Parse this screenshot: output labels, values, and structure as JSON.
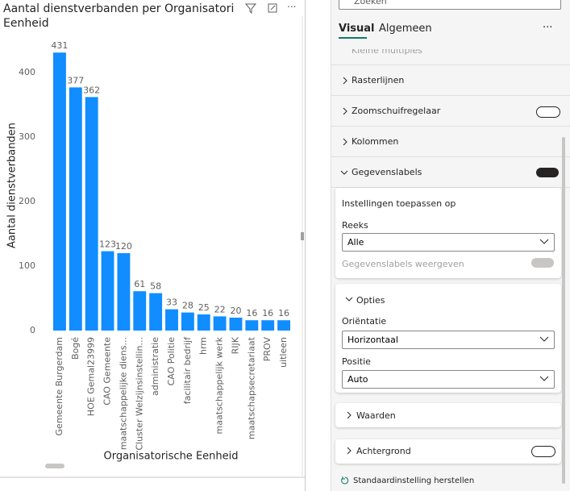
{
  "chart_data": {
    "type": "bar",
    "title": [
      "Aantal dienstverbanden per Organisatori",
      "Eenheid"
    ],
    "ylabel": "Aantal dienstverbanden",
    "xlabel": "Organisatorische Eenheid",
    "categories": [
      "Gemeente Burgerdam",
      "Bogé",
      "HOE Gemal23999",
      "CAO Gemeente",
      "maatschappelijke diens...",
      "Cluster Welzijnsinstellin...",
      "administratie",
      "CAO Politie",
      "facilitair bedrijf",
      "hrm",
      "maatschappelijk werk",
      "RIJK",
      "maatschapsecretariaat",
      "PROV",
      "uitleen"
    ],
    "values": [
      431,
      377,
      362,
      123,
      120,
      61,
      58,
      33,
      28,
      25,
      22,
      20,
      16,
      16,
      16
    ],
    "color": "#118dff",
    "ylim": [
      0,
      440
    ],
    "yticks": [
      0,
      100,
      200,
      300,
      400
    ],
    "grid": false
  },
  "pane": {
    "search": "Zoeken",
    "tabs": [
      "Visual",
      "Algemeen"
    ],
    "more": "···",
    "cut_section": "Kleine multiples",
    "sections": [
      "Rasterlijnen",
      "Zoomschuifregelaar",
      "Kolommen",
      "Gegevenslabels"
    ],
    "apply_card": {
      "title": "Instellingen toepassen op",
      "series_label": "Reeks",
      "series_value": "Alle",
      "show_label": "Gegevenslabels weergeven"
    },
    "options_card": {
      "title": "Opties",
      "orientation_label": "Oriëntatie",
      "orientation_value": "Horizontaal",
      "position_label": "Positie",
      "position_value": "Auto"
    },
    "values_card": "Waarden",
    "background_card": "Achtergrond",
    "reset": "Standaardinstelling herstellen"
  }
}
